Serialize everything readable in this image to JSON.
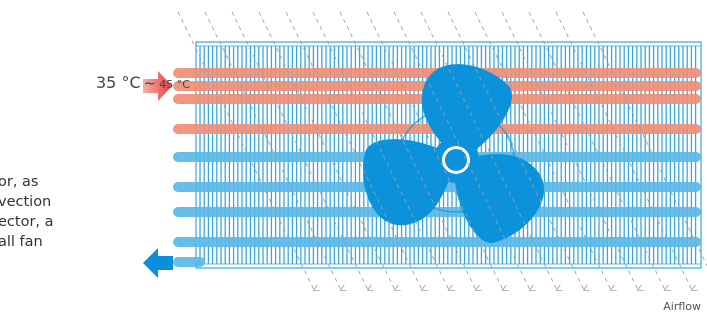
{
  "temperature": {
    "low": "35 °C",
    "separator": "~",
    "high": "45 °C"
  },
  "description_lines": [
    "or, as",
    "vection",
    "ector, a",
    "all fan"
  ],
  "airflow_label": "Airflow",
  "colors": {
    "hot_tube": "#ef8f78",
    "cold_tube": "#5ab9e8",
    "fin": "#3aa6de",
    "fan": "#0b92da",
    "arrow_hot": "#e8383d",
    "arrow_cold": "#0a8fda",
    "airflow_arrow": "#9aa0a6",
    "text": "#444444"
  }
}
